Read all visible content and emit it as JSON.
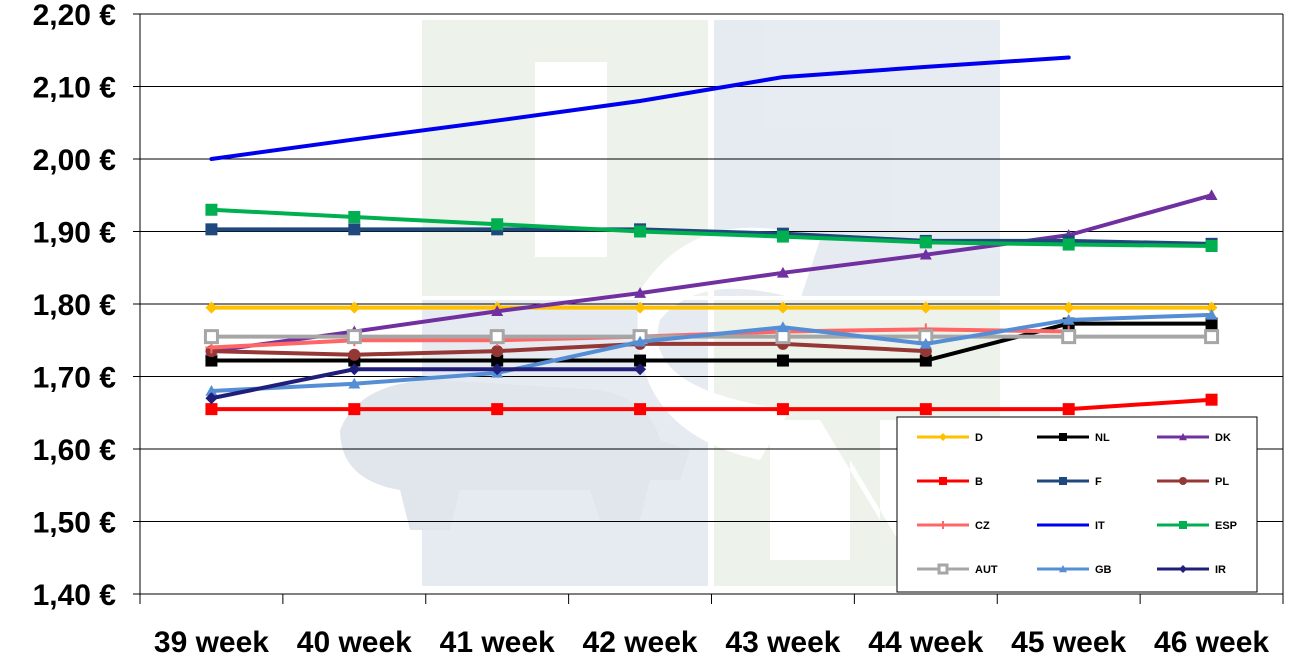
{
  "chart_data": {
    "type": "line",
    "categories": [
      "39 week",
      "40 week",
      "41 week",
      "42 week",
      "43 week",
      "44 week",
      "45 week",
      "46 week"
    ],
    "y_tick_labels": [
      "1,40 €",
      "1,50 €",
      "1,60 €",
      "1,70 €",
      "1,80 €",
      "1,90 €",
      "2,00 €",
      "2,10 €",
      "2,20 €"
    ],
    "ylim": [
      1.4,
      2.2
    ],
    "y_step": 0.1,
    "grid": "horizontal",
    "legend_position": "bottom-right",
    "series": [
      {
        "name": "D",
        "color": "#FFC000",
        "marker": "diamond",
        "values": [
          1.795,
          1.795,
          1.795,
          1.795,
          1.795,
          1.795,
          1.795,
          1.795
        ]
      },
      {
        "name": "NL",
        "color": "#000000",
        "marker": "square",
        "values": [
          1.722,
          1.722,
          1.722,
          1.722,
          1.722,
          1.722,
          1.773,
          1.773
        ]
      },
      {
        "name": "DK",
        "color": "#7030A0",
        "marker": "triangle",
        "values": [
          1.735,
          1.762,
          1.79,
          1.815,
          1.843,
          1.868,
          1.895,
          1.95
        ]
      },
      {
        "name": "B",
        "color": "#FF0000",
        "marker": "square",
        "values": [
          1.655,
          1.655,
          1.655,
          1.655,
          1.655,
          1.655,
          1.655,
          1.668
        ]
      },
      {
        "name": "F",
        "color": "#1F497D",
        "marker": "square",
        "values": [
          1.903,
          1.903,
          1.903,
          1.903,
          1.897,
          1.887,
          1.887,
          1.883
        ]
      },
      {
        "name": "PL",
        "color": "#953735",
        "marker": "circle",
        "values": [
          1.735,
          1.73,
          1.735,
          1.745,
          1.745,
          1.735,
          null,
          null
        ]
      },
      {
        "name": "CZ",
        "color": "#FF6666",
        "marker": "plus",
        "values": [
          1.74,
          1.75,
          1.75,
          1.755,
          1.762,
          1.765,
          1.762,
          null
        ]
      },
      {
        "name": "IT",
        "color": "#0000EE",
        "marker": "none",
        "values": [
          2.0,
          2.027,
          2.053,
          2.08,
          2.113,
          2.127,
          2.14,
          null
        ]
      },
      {
        "name": "ESP",
        "color": "#00B050",
        "marker": "square",
        "values": [
          1.93,
          1.92,
          1.91,
          1.9,
          1.893,
          1.885,
          1.882,
          1.88
        ]
      },
      {
        "name": "AUT",
        "color": "#A6A6A6",
        "marker": "hollow-square",
        "values": [
          1.755,
          1.755,
          1.755,
          1.755,
          1.755,
          1.755,
          1.755,
          1.755
        ]
      },
      {
        "name": "GB",
        "color": "#558ED5",
        "marker": "triangle",
        "values": [
          1.68,
          1.69,
          1.705,
          1.748,
          1.768,
          1.745,
          1.778,
          1.785
        ]
      },
      {
        "name": "IR",
        "color": "#1F1F7A",
        "marker": "diamond",
        "values": [
          1.67,
          1.71,
          1.71,
          1.71,
          null,
          null,
          null,
          null
        ]
      }
    ]
  }
}
